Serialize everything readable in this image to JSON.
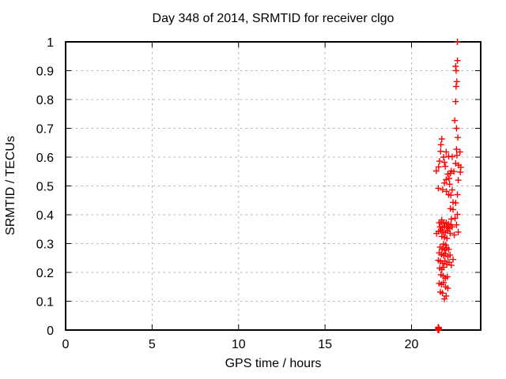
{
  "window": {
    "background": "#ffffff",
    "text_color": "#000000"
  },
  "chart_data": {
    "type": "scatter",
    "title": "Day 348 of 2014, SRMTID for receiver clgo",
    "xlabel": "GPS time / hours",
    "ylabel": "SRMTID / TECUs",
    "xlim": [
      0,
      24
    ],
    "ylim": [
      0,
      1
    ],
    "x_ticks": [
      0,
      5,
      10,
      15,
      20
    ],
    "y_ticks": [
      0,
      0.1,
      0.2,
      0.3,
      0.4,
      0.5,
      0.6,
      0.7,
      0.8,
      0.9,
      1
    ],
    "grid": true,
    "grid_style": "dashed",
    "legend": "none",
    "colors": {
      "marker": "#ff0000",
      "grid": "#b3b3b3",
      "border": "#000000",
      "text": "#000000"
    },
    "marker_style": "plus",
    "series": [
      {
        "name": "SRMTID",
        "color": "#ff0000",
        "points": [
          [
            22.65,
            1.0
          ],
          [
            22.65,
            0.935
          ],
          [
            22.55,
            0.915
          ],
          [
            22.58,
            0.9
          ],
          [
            22.62,
            0.862
          ],
          [
            22.58,
            0.845
          ],
          [
            22.55,
            0.793
          ],
          [
            22.5,
            0.727
          ],
          [
            22.6,
            0.7
          ],
          [
            21.75,
            0.663
          ],
          [
            22.68,
            0.668
          ],
          [
            21.7,
            0.643
          ],
          [
            22.6,
            0.627
          ],
          [
            21.68,
            0.62
          ],
          [
            22.0,
            0.618
          ],
          [
            22.8,
            0.618
          ],
          [
            21.85,
            0.6
          ],
          [
            22.15,
            0.603
          ],
          [
            22.35,
            0.601
          ],
          [
            22.62,
            0.606
          ],
          [
            21.62,
            0.586
          ],
          [
            21.9,
            0.582
          ],
          [
            22.55,
            0.578
          ],
          [
            22.72,
            0.572
          ],
          [
            21.57,
            0.566
          ],
          [
            21.95,
            0.568
          ],
          [
            22.85,
            0.565
          ],
          [
            22.3,
            0.552
          ],
          [
            22.45,
            0.55
          ],
          [
            22.82,
            0.548
          ],
          [
            22.1,
            0.541
          ],
          [
            22.25,
            0.544
          ],
          [
            21.43,
            0.552
          ],
          [
            22.0,
            0.522
          ],
          [
            22.17,
            0.526
          ],
          [
            22.7,
            0.52
          ],
          [
            21.9,
            0.51
          ],
          [
            22.2,
            0.506
          ],
          [
            21.55,
            0.492
          ],
          [
            21.8,
            0.487
          ],
          [
            22.02,
            0.481
          ],
          [
            22.35,
            0.486
          ],
          [
            22.15,
            0.47
          ],
          [
            22.27,
            0.468
          ],
          [
            22.65,
            0.47
          ],
          [
            22.4,
            0.443
          ],
          [
            22.55,
            0.441
          ],
          [
            22.25,
            0.421
          ],
          [
            22.4,
            0.418
          ],
          [
            22.65,
            0.401
          ],
          [
            21.75,
            0.382
          ],
          [
            22.3,
            0.385
          ],
          [
            22.52,
            0.388
          ],
          [
            21.6,
            0.372
          ],
          [
            21.73,
            0.375
          ],
          [
            21.87,
            0.37
          ],
          [
            22.0,
            0.373
          ],
          [
            22.13,
            0.368
          ],
          [
            22.27,
            0.365
          ],
          [
            21.65,
            0.358
          ],
          [
            21.78,
            0.355
          ],
          [
            21.91,
            0.36
          ],
          [
            22.05,
            0.356
          ],
          [
            22.17,
            0.352
          ],
          [
            22.35,
            0.358
          ],
          [
            21.57,
            0.342
          ],
          [
            21.7,
            0.345
          ],
          [
            21.83,
            0.34
          ],
          [
            21.95,
            0.338
          ],
          [
            22.09,
            0.344
          ],
          [
            22.23,
            0.336
          ],
          [
            21.75,
            0.325
          ],
          [
            21.9,
            0.322
          ],
          [
            22.05,
            0.318
          ],
          [
            22.47,
            0.33
          ],
          [
            22.6,
            0.365
          ],
          [
            22.7,
            0.34
          ],
          [
            21.45,
            0.335
          ],
          [
            21.85,
            0.298
          ],
          [
            21.98,
            0.295
          ],
          [
            21.65,
            0.288
          ],
          [
            21.77,
            0.282
          ],
          [
            21.9,
            0.278
          ],
          [
            22.03,
            0.285
          ],
          [
            22.15,
            0.28
          ],
          [
            21.6,
            0.268
          ],
          [
            21.73,
            0.262
          ],
          [
            21.85,
            0.258
          ],
          [
            21.97,
            0.265
          ],
          [
            22.1,
            0.255
          ],
          [
            22.23,
            0.26
          ],
          [
            21.55,
            0.242
          ],
          [
            21.67,
            0.238
          ],
          [
            21.8,
            0.232
          ],
          [
            21.93,
            0.24
          ],
          [
            22.05,
            0.228
          ],
          [
            22.17,
            0.235
          ],
          [
            21.63,
            0.215
          ],
          [
            21.75,
            0.21
          ],
          [
            21.87,
            0.218
          ],
          [
            22.3,
            0.225
          ],
          [
            22.4,
            0.245
          ],
          [
            21.7,
            0.192
          ],
          [
            21.83,
            0.188
          ],
          [
            21.95,
            0.18
          ],
          [
            22.07,
            0.185
          ],
          [
            21.6,
            0.162
          ],
          [
            21.73,
            0.158
          ],
          [
            21.85,
            0.165
          ],
          [
            21.97,
            0.15
          ],
          [
            21.67,
            0.132
          ],
          [
            21.79,
            0.128
          ],
          [
            22.1,
            0.145
          ],
          [
            22.0,
            0.118
          ],
          [
            21.9,
            0.108
          ],
          [
            21.53,
            0.0
          ],
          [
            21.54,
            0.003
          ],
          [
            21.55,
            0.006
          ],
          [
            21.56,
            0.001
          ],
          [
            21.57,
            0.004
          ],
          [
            21.58,
            0.007
          ],
          [
            21.54,
            0.009
          ],
          [
            21.55,
            0.005
          ],
          [
            21.56,
            0.002
          ],
          [
            21.57,
            0.008
          ],
          [
            21.58,
            0.0
          ],
          [
            21.55,
            0.01
          ]
        ]
      }
    ]
  }
}
